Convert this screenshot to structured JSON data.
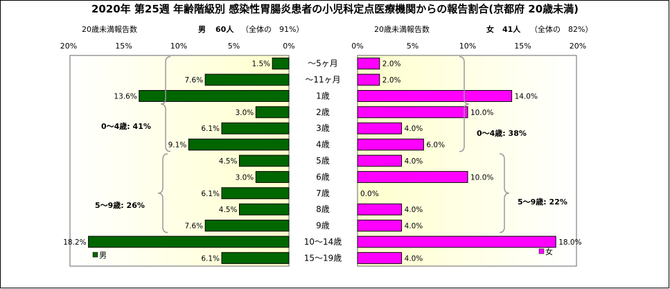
{
  "title": "2020年 第25週 年齢階級別 感染性胃腸炎患者の小児科定点医療機関からの報告割合(京都府 20歳未満)",
  "left_panel": {
    "subheader": "20歳未満報告数",
    "sex_label": "男",
    "count_text": "60人",
    "share_text": "（全体の　91%）",
    "legend": "男",
    "brackets": [
      "0～4歳: 41%",
      "5～9歳: 26%"
    ]
  },
  "right_panel": {
    "subheader": "20歳未満報告数",
    "sex_label": "女",
    "count_text": "41人",
    "share_text": "（全体の　82%）",
    "legend": "女",
    "brackets": [
      "0～4歳: 38%",
      "5～9歳: 22%"
    ]
  },
  "colors": {
    "male_bar": "#006600",
    "female_bar": "#ff00ff",
    "plot_bg": "#ffffcc",
    "bracket": "#999999"
  },
  "chart_data": {
    "type": "bar",
    "orientation": "horizontal",
    "categories": [
      "～5ヶ月",
      "～11ヶ月",
      "1歳",
      "2歳",
      "3歳",
      "4歳",
      "5歳",
      "6歳",
      "7歳",
      "8歳",
      "9歳",
      "10～14歳",
      "15～19歳"
    ],
    "x_ticks": [
      "20%",
      "15%",
      "10%",
      "5%",
      "0%"
    ],
    "x_ticks_right": [
      "0%",
      "5%",
      "10%",
      "15%",
      "20%"
    ],
    "xlim": [
      0,
      20
    ],
    "series": [
      {
        "name": "男",
        "values": [
          1.5,
          7.6,
          13.6,
          3.0,
          6.1,
          9.1,
          4.5,
          3.0,
          6.1,
          4.5,
          7.6,
          18.2,
          6.1
        ],
        "labels": [
          "1.5%",
          "7.6%",
          "13.6%",
          "3.0%",
          "6.1%",
          "9.1%",
          "4.5%",
          "3.0%",
          "6.1%",
          "4.5%",
          "7.6%",
          "18.2%",
          "6.1%"
        ]
      },
      {
        "name": "女",
        "values": [
          2.0,
          2.0,
          14.0,
          10.0,
          4.0,
          6.0,
          4.0,
          10.0,
          0.0,
          4.0,
          4.0,
          18.0,
          4.0
        ],
        "labels": [
          "2.0%",
          "2.0%",
          "14.0%",
          "10.0%",
          "4.0%",
          "6.0%",
          "4.0%",
          "10.0%",
          "0.0%",
          "4.0%",
          "4.0%",
          "18.0%",
          "4.0%"
        ]
      }
    ]
  }
}
